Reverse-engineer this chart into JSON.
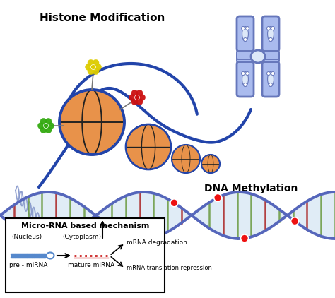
{
  "title": "Histone Modification",
  "dna_methylation_label": "DNA Methylation",
  "mirna_box_title": "Micro-RNA based mechanism",
  "nucleus_label": "(Nucleus)",
  "cytoplasm_label": "(Cytoplasm)",
  "mrna_deg_label": "mRNA degradation",
  "mrna_trans_label": "mRNA translation repression",
  "pre_mirna_label": "pre - miRNA",
  "mature_mirna_label": "mature miRNA",
  "bg_color": "#ffffff",
  "dna_strand_color": "#5566bb",
  "dna_fill_color": "#cce0f0",
  "dna_base_green": "#6a9a3f",
  "dna_base_red": "#aa2222",
  "nucleosome_fill": "#e8924a",
  "nucleosome_line": "#111111",
  "nucleosome_circle_color": "#2244aa",
  "flower_yellow": "#ddcc00",
  "flower_green": "#33aa11",
  "flower_red": "#cc1111",
  "chromosome_color": "#6677bb",
  "chromosome_fill": "#aabbee",
  "chromosome_inner": "#dde8f8",
  "arrow_color": "#111111",
  "mirna_color": "#cc2222",
  "pre_mirna_color": "#5588cc",
  "box_bg": "#ffffff",
  "methylation_dot_color": "#ee1111",
  "thread_color": "#2244aa"
}
